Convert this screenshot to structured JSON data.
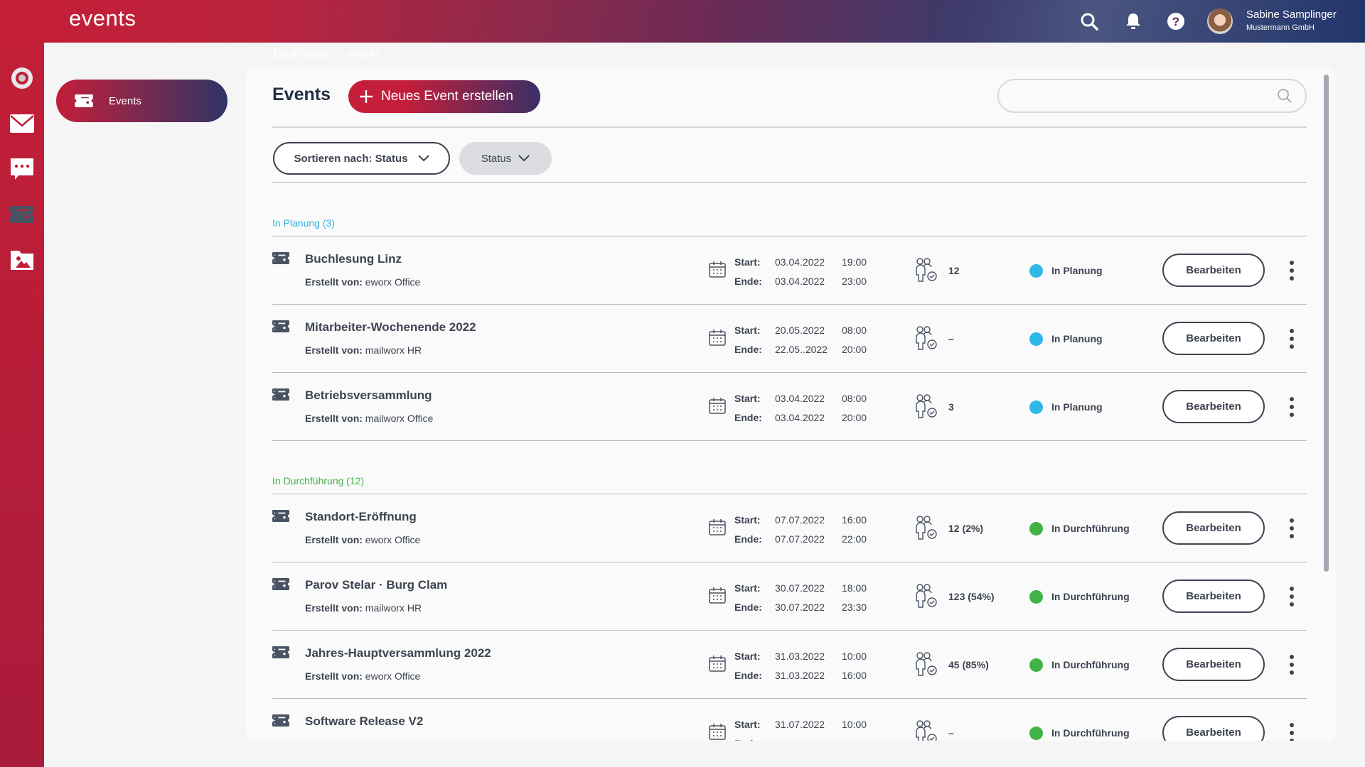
{
  "header": {
    "app_title": "events",
    "user": {
      "name": "Sabine Samplinger",
      "org": "Mustermann GmbH"
    },
    "icons": [
      "search-icon",
      "bell-icon",
      "help-icon"
    ]
  },
  "rail": {
    "icons": [
      "logo-icon",
      "mail-icon",
      "chat-icon",
      "ticket-icon",
      "media-folder-icon"
    ]
  },
  "sidebar": {
    "items": [
      {
        "label": "Events",
        "icon": "ticket-icon",
        "active": true
      }
    ]
  },
  "breadcrumb": [
    "Dashboard",
    "events"
  ],
  "main": {
    "title": "Events",
    "new_button": "Neues Event erstellen",
    "search": {
      "value": "",
      "placeholder": ""
    },
    "sort_label": "Sortieren nach: Status",
    "status_filter": "Status",
    "labels": {
      "start": "Start:",
      "end": "Ende:",
      "created_by": "Erstellt von:",
      "edit": "Bearbeiten"
    },
    "colors": {
      "planning": "#2fb8e6",
      "running": "#43b244",
      "accent": "#c41e3a"
    },
    "sections": [
      {
        "label": "In Planung (3)",
        "color": "#2fb8e6",
        "events": [
          {
            "title": "Buchlesung Linz",
            "creator": "eworx Office",
            "start_date": "03.04.2022",
            "start_time": "19:00",
            "end_date": "03.04.2022",
            "end_time": "23:00",
            "participants": "12",
            "status": "In Planung"
          },
          {
            "title": "Mitarbeiter-Wochenende 2022",
            "creator": "mailworx HR",
            "start_date": "20.05.2022",
            "start_time": "08:00",
            "end_date": "22.05..2022",
            "end_time": "20:00",
            "participants": "–",
            "status": "In Planung"
          },
          {
            "title": "Betriebsversammlung",
            "creator": "mailworx Office",
            "start_date": "03.04.2022",
            "start_time": "08:00",
            "end_date": "03.04.2022",
            "end_time": "20:00",
            "participants": "3",
            "status": "In Planung"
          }
        ]
      },
      {
        "label": "In Durchführung (12)",
        "color": "#43b244",
        "events": [
          {
            "title": "Standort-Eröffnung",
            "creator": "eworx Office",
            "start_date": "07.07.2022",
            "start_time": "16:00",
            "end_date": "07.07.2022",
            "end_time": "22:00",
            "participants": "12 (2%)",
            "status": "In Durchführung"
          },
          {
            "title": "Parov Stelar · Burg Clam",
            "creator": "mailworx HR",
            "start_date": "30.07.2022",
            "start_time": "18:00",
            "end_date": "30.07.2022",
            "end_time": "23:30",
            "participants": "123 (54%)",
            "status": "In Durchführung"
          },
          {
            "title": "Jahres-Hauptversammlung 2022",
            "creator": "eworx Office",
            "start_date": "31.03.2022",
            "start_time": "10:00",
            "end_date": "31.03.2022",
            "end_time": "16:00",
            "participants": "45 (85%)",
            "status": "In Durchführung"
          },
          {
            "title": "Software Release V2",
            "creator": "",
            "start_date": "31.07.2022",
            "start_time": "10:00",
            "end_date": "",
            "end_time": "",
            "participants": "–",
            "status": "In Durchführung"
          }
        ]
      }
    ]
  }
}
